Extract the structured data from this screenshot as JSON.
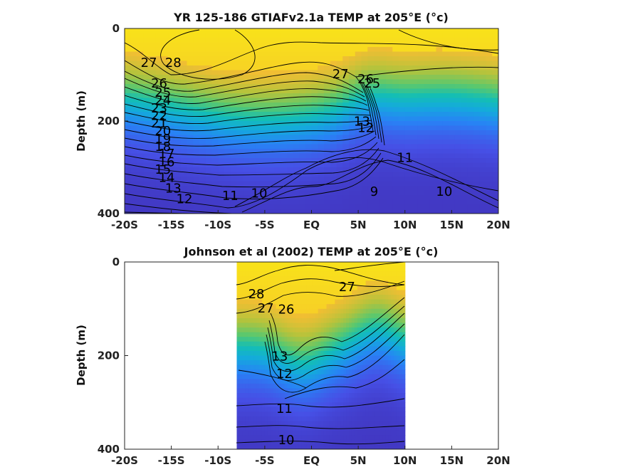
{
  "chart_data": [
    {
      "type": "heatmap",
      "title": "YR 125-186 GTIAFv2.1a TEMP at 205°E (°c)",
      "ylabel": "Depth (m)",
      "xlim": [
        -20,
        20
      ],
      "ylim": [
        0,
        400
      ],
      "y_reversed": true,
      "x_ticks": [
        -20,
        -15,
        -10,
        -5,
        0,
        5,
        10,
        15,
        20
      ],
      "x_tick_labels": [
        "-20S",
        "-15S",
        "-10S",
        "-5S",
        "EQ",
        "5N",
        "10N",
        "15N",
        "20N"
      ],
      "y_ticks": [
        0,
        200,
        400
      ],
      "y_tick_labels": [
        "0",
        "200",
        "400"
      ],
      "colormap": "parula",
      "data_xrange": [
        -20,
        20
      ],
      "contour_levels": [
        9,
        10,
        11,
        12,
        13,
        14,
        15,
        16,
        17,
        18,
        19,
        20,
        21,
        22,
        23,
        24,
        25,
        26,
        27,
        28
      ],
      "contour_labels": [
        {
          "text": "28",
          "x": -14.8,
          "y": 75
        },
        {
          "text": "27",
          "x": -17.4,
          "y": 75
        },
        {
          "text": "26",
          "x": -16.3,
          "y": 120
        },
        {
          "text": "25",
          "x": -15.9,
          "y": 140
        },
        {
          "text": "24",
          "x": -15.9,
          "y": 157
        },
        {
          "text": "23",
          "x": -16.3,
          "y": 174
        },
        {
          "text": "22",
          "x": -16.3,
          "y": 190
        },
        {
          "text": "21",
          "x": -16.3,
          "y": 206
        },
        {
          "text": "20",
          "x": -15.9,
          "y": 223
        },
        {
          "text": "19",
          "x": -15.9,
          "y": 240
        },
        {
          "text": "18",
          "x": -15.9,
          "y": 257
        },
        {
          "text": "17",
          "x": -15.5,
          "y": 272
        },
        {
          "text": "16",
          "x": -15.5,
          "y": 290
        },
        {
          "text": "15",
          "x": -15.9,
          "y": 306
        },
        {
          "text": "14",
          "x": -15.5,
          "y": 324
        },
        {
          "text": "13",
          "x": -14.8,
          "y": 347
        },
        {
          "text": "12",
          "x": -13.6,
          "y": 370
        },
        {
          "text": "11",
          "x": -8.7,
          "y": 363
        },
        {
          "text": "10",
          "x": -5.6,
          "y": 358
        },
        {
          "text": "9",
          "x": 6.7,
          "y": 354
        },
        {
          "text": "10",
          "x": 14.2,
          "y": 354
        },
        {
          "text": "11",
          "x": 10.0,
          "y": 281
        },
        {
          "text": "12",
          "x": 5.8,
          "y": 216
        },
        {
          "text": "13",
          "x": 5.4,
          "y": 202
        },
        {
          "text": "27",
          "x": 3.1,
          "y": 100
        },
        {
          "text": "26",
          "x": 5.8,
          "y": 111
        },
        {
          "text": "25",
          "x": 6.5,
          "y": 120
        }
      ]
    },
    {
      "type": "heatmap",
      "title": "Johnson et al (2002) TEMP at 205°E (°c)",
      "ylabel": "Depth (m)",
      "xlim": [
        -20,
        20
      ],
      "ylim": [
        0,
        400
      ],
      "y_reversed": true,
      "x_ticks": [
        -20,
        -15,
        -10,
        -5,
        0,
        5,
        10,
        15,
        20
      ],
      "x_tick_labels": [
        "-20S",
        "-15S",
        "-10S",
        "-5S",
        "EQ",
        "5N",
        "10N",
        "15N",
        "20N"
      ],
      "y_ticks": [
        0,
        200,
        400
      ],
      "y_tick_labels": [
        "0",
        "200",
        "400"
      ],
      "colormap": "parula",
      "data_xrange": [
        -8,
        10
      ],
      "contour_levels": [
        10,
        11,
        12,
        13,
        14,
        15,
        16,
        17,
        18,
        19,
        20,
        21,
        22,
        23,
        24,
        25,
        26,
        27,
        28
      ],
      "contour_labels": [
        {
          "text": "28",
          "x": -5.9,
          "y": 70
        },
        {
          "text": "27",
          "x": -4.9,
          "y": 100
        },
        {
          "text": "26",
          "x": -2.7,
          "y": 103
        },
        {
          "text": "13",
          "x": -3.4,
          "y": 203
        },
        {
          "text": "12",
          "x": -2.9,
          "y": 240
        },
        {
          "text": "11",
          "x": -2.9,
          "y": 315
        },
        {
          "text": "10",
          "x": -2.7,
          "y": 382
        },
        {
          "text": "27",
          "x": 3.8,
          "y": 55
        }
      ]
    }
  ]
}
